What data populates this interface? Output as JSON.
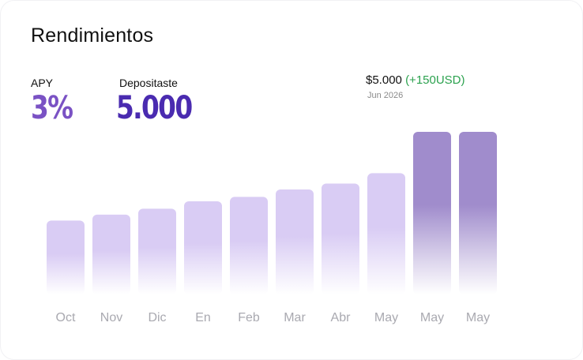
{
  "header": {
    "title": "Rendimientos"
  },
  "stats": {
    "apy_label": "APY",
    "apy_value": "3%",
    "deposit_label": "Depositaste",
    "deposit_value": "5.000"
  },
  "tooltip": {
    "amount": "$5.000",
    "gain": "(+150USD)",
    "date": "Jun 2026"
  },
  "colors": {
    "bar_light": "#d9ccf4",
    "bar_highlight": "#a08ccc",
    "apy": "#7a52c4",
    "deposit": "#4a2bb0",
    "gain": "#2ca24f",
    "tick": "#a9a9b0"
  },
  "chart_data": {
    "type": "bar",
    "title": "",
    "xlabel": "",
    "ylabel": "",
    "categories": [
      "Oct",
      "Nov",
      "Dic",
      "En",
      "Feb",
      "Mar",
      "Abr",
      "May",
      "May",
      "May"
    ],
    "values": [
      4850,
      4870,
      4890,
      4915,
      4930,
      4955,
      4975,
      5010,
      5150,
      5150
    ],
    "highlighted": [
      false,
      false,
      false,
      false,
      false,
      false,
      false,
      false,
      true,
      true
    ],
    "ylim": [
      4600,
      5150
    ],
    "grid": false,
    "legend": "none"
  }
}
